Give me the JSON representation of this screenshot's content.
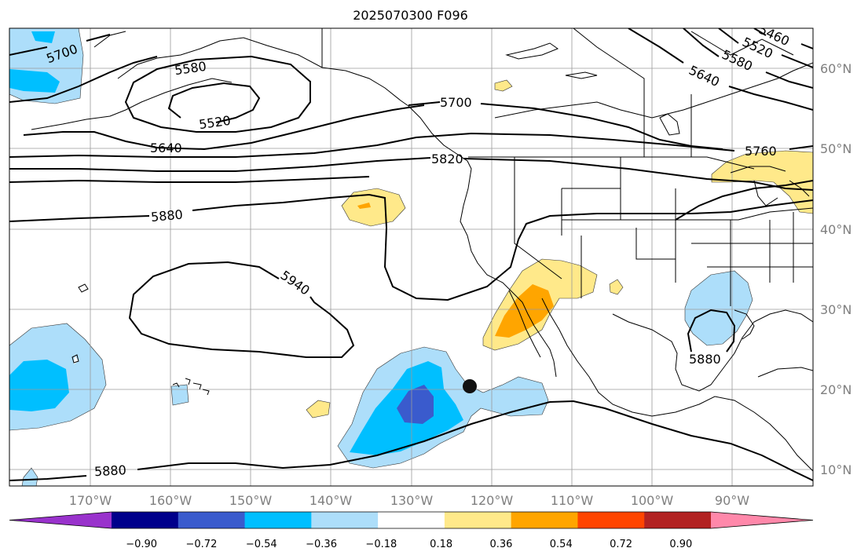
{
  "title": "2025070300 F096",
  "lat_labels": [
    "60°N",
    "50°N",
    "40°N",
    "30°N",
    "20°N",
    "10°N"
  ],
  "lon_labels": [
    "170°W",
    "160°W",
    "150°W",
    "140°W",
    "130°W",
    "120°W",
    "110°W",
    "100°W",
    "90°W"
  ],
  "contour_labels": [
    "5700",
    "5580",
    "5520",
    "5640",
    "5880",
    "5940",
    "5700",
    "5820",
    "5760",
    "5880",
    "5880",
    "5460",
    "5520",
    "5580",
    "5640"
  ],
  "colorbar": {
    "ticks": [
      "−0.90",
      "−0.72",
      "−0.54",
      "−0.36",
      "−0.18",
      "0.18",
      "0.36",
      "0.54",
      "0.72",
      "0.90"
    ],
    "colors": [
      "#9932CC",
      "#00008B",
      "#3A5BCD",
      "#00BFFF",
      "#ADDEFA",
      "#FFFFFF",
      "#FFE98A",
      "#FFA500",
      "#FF4500",
      "#B22222",
      "#FF88AA"
    ]
  },
  "marker": "storm-center-dot"
}
